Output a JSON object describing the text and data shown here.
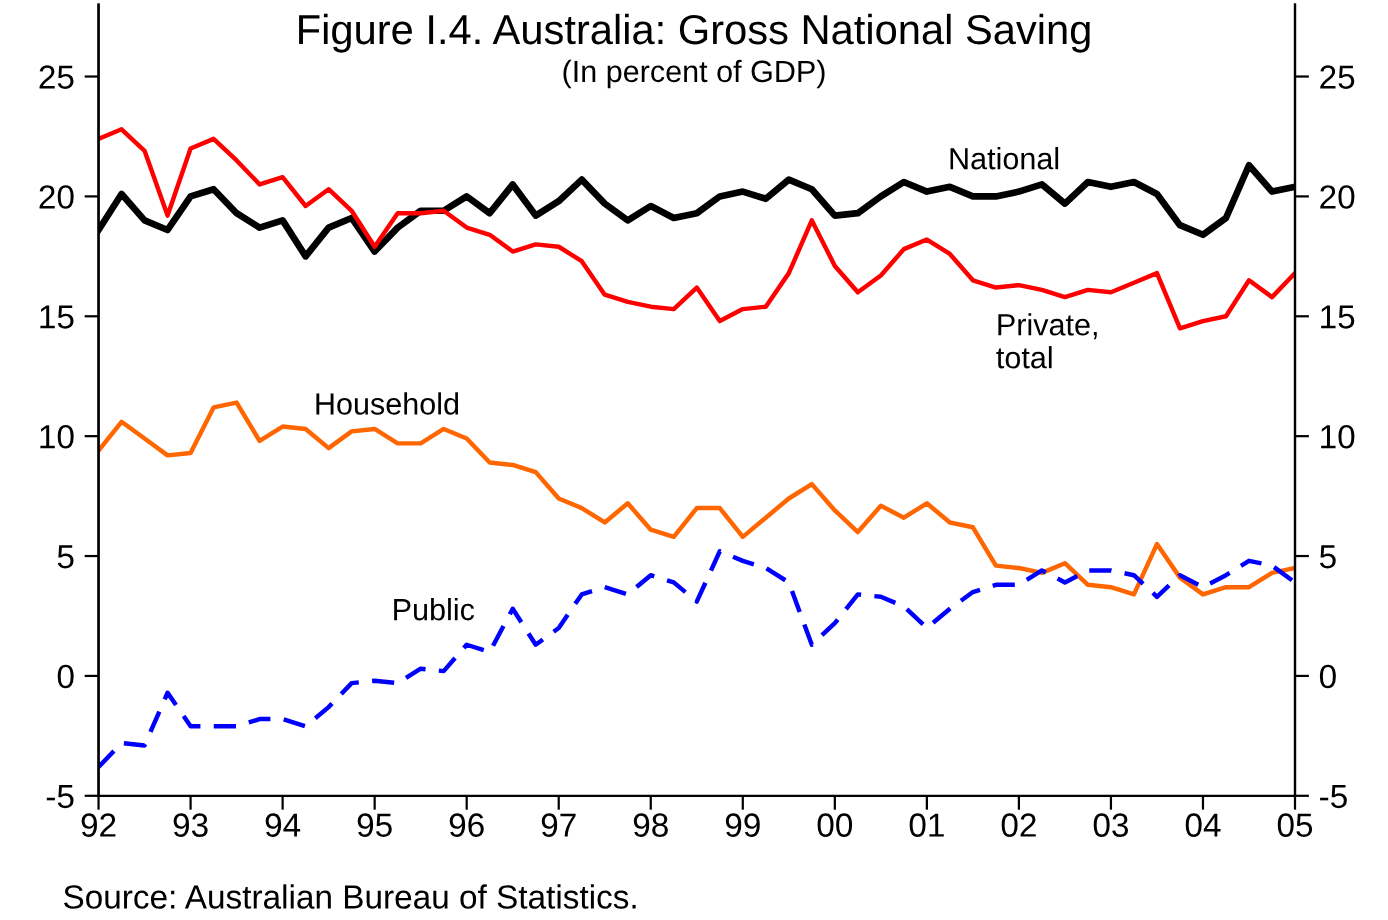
{
  "chart_data": {
    "type": "line",
    "title": "Figure I.4. Australia: Gross National Saving",
    "subtitle": "(In percent of GDP)",
    "annotations": [
      "Source: Australian Bureau of Statistics."
    ],
    "x": [
      1992,
      1992.25,
      1992.5,
      1992.75,
      1993,
      1993.25,
      1993.5,
      1993.75,
      1994,
      1994.25,
      1994.5,
      1994.75,
      1995,
      1995.25,
      1995.5,
      1995.75,
      1996,
      1996.25,
      1996.5,
      1996.75,
      1997,
      1997.25,
      1997.5,
      1997.75,
      1998,
      1998.25,
      1998.5,
      1998.75,
      1999,
      1999.25,
      1999.5,
      1999.75,
      2000,
      2000.25,
      2000.5,
      2000.75,
      2001,
      2001.25,
      2001.5,
      2001.75,
      2002,
      2002.25,
      2002.5,
      2002.75,
      2003,
      2003.25,
      2003.5,
      2003.75,
      2004,
      2004.25,
      2004.5,
      2004.75,
      2005
    ],
    "series": [
      {
        "name": "National",
        "color": "#000000",
        "line_style": "solid",
        "values": [
          18.6,
          20.1,
          19.0,
          18.6,
          20.0,
          20.3,
          19.3,
          18.7,
          19.0,
          17.5,
          18.7,
          19.1,
          17.7,
          18.7,
          19.4,
          19.4,
          20.0,
          19.3,
          20.5,
          19.2,
          19.8,
          20.7,
          19.7,
          19.0,
          19.6,
          19.1,
          19.3,
          20.0,
          20.2,
          19.9,
          20.7,
          20.3,
          19.2,
          19.3,
          20.0,
          20.6,
          20.2,
          20.4,
          20.0,
          20.0,
          20.2,
          20.5,
          19.7,
          20.6,
          20.4,
          20.6,
          20.1,
          18.8,
          18.4,
          19.1,
          21.3,
          20.2,
          20.4
        ]
      },
      {
        "name": "Private,\ntotal",
        "color": "#ff0000",
        "line_style": "solid",
        "values": [
          22.4,
          22.8,
          21.9,
          19.2,
          22.0,
          22.4,
          21.5,
          20.5,
          20.8,
          19.6,
          20.3,
          19.4,
          17.9,
          19.3,
          19.3,
          19.4,
          18.7,
          18.4,
          17.7,
          18.0,
          17.9,
          17.3,
          15.9,
          15.6,
          15.4,
          15.3,
          16.2,
          14.8,
          15.3,
          15.4,
          16.8,
          19.0,
          17.1,
          16.0,
          16.7,
          17.8,
          18.2,
          17.6,
          16.5,
          16.2,
          16.3,
          16.1,
          15.8,
          16.1,
          16.0,
          16.4,
          16.8,
          14.5,
          14.8,
          15.0,
          16.5,
          15.8,
          16.8
        ]
      },
      {
        "name": "Household",
        "color": "#ff6600",
        "line_style": "solid",
        "values": [
          9.4,
          10.6,
          9.9,
          9.2,
          9.3,
          11.2,
          11.4,
          9.8,
          10.4,
          10.3,
          9.5,
          10.2,
          10.3,
          9.7,
          9.7,
          10.3,
          9.9,
          8.9,
          8.8,
          8.5,
          7.4,
          7.0,
          6.4,
          7.2,
          6.1,
          5.8,
          7.0,
          7.0,
          5.8,
          6.6,
          7.4,
          8.0,
          6.9,
          6.0,
          7.1,
          6.6,
          7.2,
          6.4,
          6.2,
          4.6,
          4.5,
          4.3,
          4.7,
          3.8,
          3.7,
          3.4,
          5.5,
          4.1,
          3.4,
          3.7,
          3.7,
          4.3,
          4.5
        ]
      },
      {
        "name": "Public",
        "color": "#0000ff",
        "line_style": "dashed",
        "values": [
          -3.8,
          -2.8,
          -2.9,
          -0.7,
          -2.1,
          -2.1,
          -2.1,
          -1.8,
          -1.8,
          -2.1,
          -1.3,
          -0.3,
          -0.2,
          -0.3,
          0.3,
          0.2,
          1.3,
          1.0,
          2.8,
          1.3,
          2.0,
          3.4,
          3.7,
          3.4,
          4.2,
          3.9,
          3.1,
          5.2,
          4.8,
          4.5,
          3.9,
          1.3,
          2.2,
          3.4,
          3.3,
          2.9,
          2.0,
          2.8,
          3.5,
          3.8,
          3.8,
          4.4,
          3.9,
          4.4,
          4.4,
          4.2,
          3.3,
          4.2,
          3.7,
          4.2,
          4.8,
          4.6,
          3.9
        ]
      }
    ],
    "xlim": [
      1992,
      2005
    ],
    "xticks": [
      {
        "value": 1992,
        "label": "92"
      },
      {
        "value": 1993,
        "label": "93"
      },
      {
        "value": 1994,
        "label": "94"
      },
      {
        "value": 1995,
        "label": "95"
      },
      {
        "value": 1996,
        "label": "96"
      },
      {
        "value": 1997,
        "label": "97"
      },
      {
        "value": 1998,
        "label": "98"
      },
      {
        "value": 1999,
        "label": "99"
      },
      {
        "value": 2000,
        "label": "00"
      },
      {
        "value": 2001,
        "label": "01"
      },
      {
        "value": 2002,
        "label": "02"
      },
      {
        "value": 2003,
        "label": "03"
      },
      {
        "value": 2004,
        "label": "04"
      },
      {
        "value": 2005,
        "label": "05"
      }
    ],
    "ylim": [
      -5,
      28
    ],
    "yticks": [
      {
        "value": -5,
        "label": "-5"
      },
      0,
      5,
      10,
      15,
      20,
      25
    ],
    "y2lim": [
      -5,
      28
    ],
    "y2ticks": [
      {
        "value": -5,
        "label": "-5"
      },
      0,
      5,
      10,
      15,
      20,
      25
    ],
    "grid": false,
    "legend": false,
    "marker": "none"
  }
}
